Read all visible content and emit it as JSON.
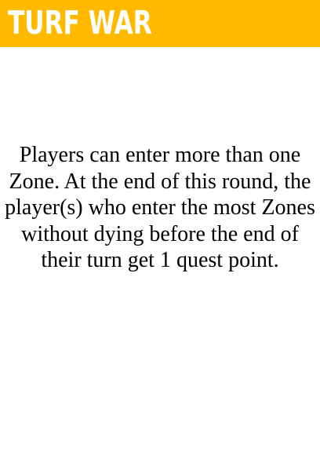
{
  "card": {
    "title": "TURF WAR",
    "body": "Players can enter more than one Zone. At the end of this round, the player(s) who enter the most Zones without dying before the end of their turn get 1 quest point."
  },
  "colors": {
    "title_bar": "#FFBA00",
    "title_text": "#FFFFFF",
    "body_text": "#000000",
    "background": "#FFFFFF"
  }
}
